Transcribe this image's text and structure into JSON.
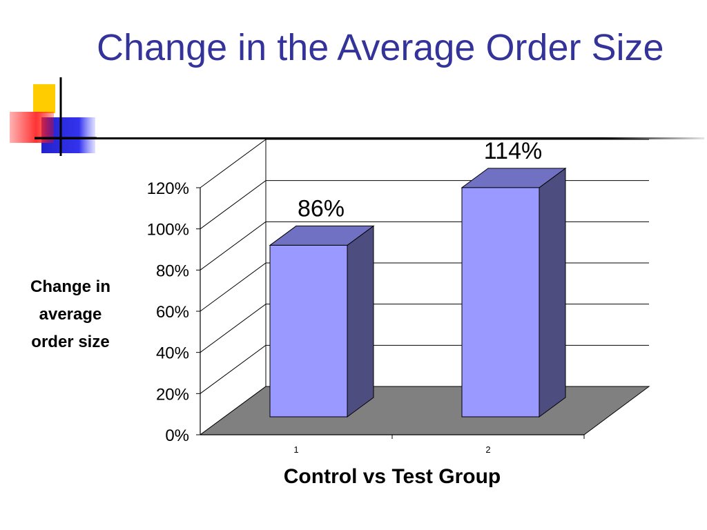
{
  "slide": {
    "title": "Change in the Average Order Size"
  },
  "chart_data": {
    "type": "bar",
    "categories": [
      "1",
      "2"
    ],
    "values": [
      0.86,
      1.14
    ],
    "data_labels": [
      "86%",
      "114%"
    ],
    "title": "",
    "xlabel": "Control vs Test Group",
    "ylabel": "Change in\naverage\norder size",
    "ylim": [
      0,
      1.2
    ],
    "yticks": [
      "0%",
      "20%",
      "40%",
      "60%",
      "80%",
      "100%",
      "120%"
    ],
    "grid": true,
    "style": "3d-column",
    "colors": {
      "bar_front": "#9999ff",
      "bar_top": "#7171c4",
      "bar_side": "#4d4d80",
      "floor": "#808080",
      "title": "#333399"
    }
  }
}
